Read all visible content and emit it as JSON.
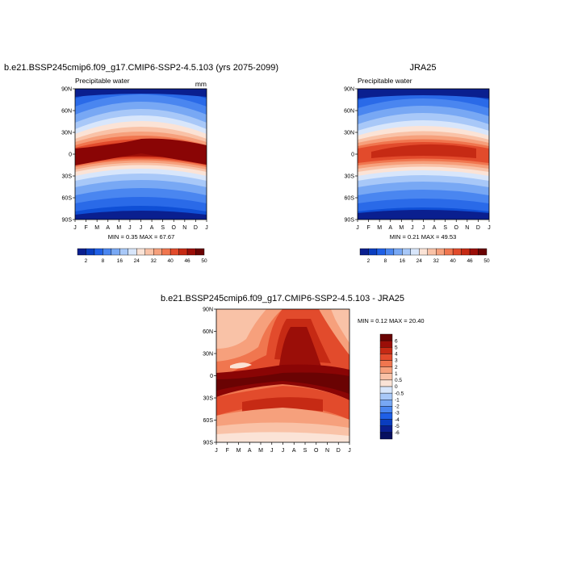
{
  "panels": [
    {
      "title": "b.e21.BSSP245cmip6.f09_g17.CMIP6-SSP2-4.5.103 (yrs 2075-2099)",
      "left_label": "Precipitable water",
      "units": "mm",
      "stats": "MIN =  0.35 MAX =  67.67",
      "max_value": 67.67,
      "min_value": 0.35
    },
    {
      "title": "JRA25",
      "left_label": "Precipitable water",
      "units": "",
      "stats": "MIN =  0.21 MAX =  49.53",
      "max_value": 49.53,
      "min_value": 0.21
    },
    {
      "title": "b.e21.BSSP245cmip6.f09_g17.CMIP6-SSP2-4.5.103 - JRA25",
      "left_label": "",
      "units": "",
      "stats": "MIN =  0.12 MAX =  20.40",
      "max_value": 20.4,
      "min_value": 0.12
    }
  ],
  "chart_data": [
    {
      "type": "heatmap",
      "x_ticks": [
        "J",
        "F",
        "M",
        "A",
        "M",
        "J",
        "J",
        "A",
        "S",
        "O",
        "N",
        "D",
        "J"
      ],
      "y_ticks": [
        "90N",
        "60N",
        "30N",
        "0",
        "30S",
        "60S",
        "90S"
      ],
      "colorbar_levels": [
        "2",
        "8",
        "16",
        "24",
        "32",
        "40",
        "46",
        "50"
      ],
      "colorbar_colors": [
        "#0a1f8f",
        "#0a3dbf",
        "#1f5fe6",
        "#4a86f0",
        "#78a8f4",
        "#a8c8f8",
        "#d8e6fb",
        "#fbe3d6",
        "#f9c2a7",
        "#f6a07c",
        "#f0764f",
        "#e24b2c",
        "#c62a14",
        "#9b0e08",
        "#6a0303"
      ],
      "description_max_near": "equator, Jul-Sep"
    },
    {
      "type": "heatmap",
      "x_ticks": [
        "J",
        "F",
        "M",
        "A",
        "M",
        "J",
        "J",
        "A",
        "S",
        "O",
        "N",
        "D",
        "J"
      ],
      "y_ticks": [
        "90N",
        "60N",
        "30N",
        "0",
        "30S",
        "60S",
        "90S"
      ],
      "colorbar_levels": [
        "2",
        "8",
        "16",
        "24",
        "32",
        "40",
        "46",
        "50"
      ],
      "colorbar_colors": [
        "#0a1f8f",
        "#0a3dbf",
        "#1f5fe6",
        "#4a86f0",
        "#78a8f4",
        "#a8c8f8",
        "#d8e6fb",
        "#fbe3d6",
        "#f9c2a7",
        "#f6a07c",
        "#f0764f",
        "#e24b2c",
        "#c62a14",
        "#9b0e08",
        "#6a0303"
      ]
    },
    {
      "type": "heatmap",
      "x_ticks": [
        "J",
        "F",
        "M",
        "A",
        "M",
        "J",
        "J",
        "A",
        "S",
        "O",
        "N",
        "D",
        "J"
      ],
      "y_ticks": [
        "90N",
        "60N",
        "30N",
        "0",
        "30S",
        "60S",
        "90S"
      ],
      "colorbar_levels": [
        "6",
        "5",
        "4",
        "3",
        "2",
        "1",
        "0.5",
        "0",
        "-0.5",
        "-1",
        "-2",
        "-3",
        "-4",
        "-5",
        "-6"
      ],
      "colorbar_colors": [
        "#6a0303",
        "#9b0e08",
        "#c62a14",
        "#e24b2c",
        "#f0764f",
        "#f6a07c",
        "#f9c2a7",
        "#fbe3d6",
        "#d8e6fb",
        "#a8c8f8",
        "#78a8f4",
        "#4a86f0",
        "#1f5fe6",
        "#0a3dbf",
        "#0a1f8f",
        "#071060"
      ]
    }
  ]
}
